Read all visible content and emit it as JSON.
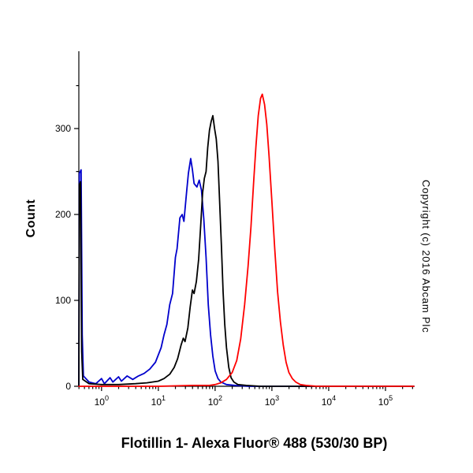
{
  "copyright": "Copyright (c) 2016 Abcam Plc",
  "chart_data": {
    "type": "line",
    "subtype": "flow-cytometry-histogram",
    "title": "Flotillin 1- Alexa Fluor® 488 (530/30 BP)",
    "xlabel": "Flotillin 1- Alexa Fluor® 488 (530/30 BP)",
    "ylabel": "Count",
    "x_scale": "log10",
    "x_log_range": [
      -0.4,
      5.5
    ],
    "x_major_exponents": [
      0,
      1,
      2,
      3,
      4,
      5
    ],
    "ylim": [
      0,
      390
    ],
    "y_major_ticks": [
      0,
      100,
      200,
      300
    ],
    "y_minor_ticks": [
      50,
      150,
      250,
      350
    ],
    "grid": false,
    "legend": "none",
    "series": [
      {
        "name": "blue-curve",
        "color": "#0000cc",
        "peak": {
          "x_log10": 1.57,
          "count": 265
        },
        "points": [
          [
            -0.4,
            0
          ],
          [
            -0.39,
            248
          ],
          [
            -0.36,
            252
          ],
          [
            -0.34,
            60
          ],
          [
            -0.32,
            12
          ],
          [
            -0.22,
            5
          ],
          [
            -0.1,
            3
          ],
          [
            0.0,
            9
          ],
          [
            0.05,
            3
          ],
          [
            0.15,
            10
          ],
          [
            0.2,
            5
          ],
          [
            0.3,
            11
          ],
          [
            0.35,
            6
          ],
          [
            0.45,
            12
          ],
          [
            0.55,
            8
          ],
          [
            0.65,
            12
          ],
          [
            0.75,
            15
          ],
          [
            0.85,
            20
          ],
          [
            0.95,
            28
          ],
          [
            1.05,
            45
          ],
          [
            1.1,
            60
          ],
          [
            1.15,
            72
          ],
          [
            1.2,
            95
          ],
          [
            1.25,
            108
          ],
          [
            1.3,
            150
          ],
          [
            1.33,
            160
          ],
          [
            1.38,
            196
          ],
          [
            1.42,
            200
          ],
          [
            1.45,
            192
          ],
          [
            1.5,
            228
          ],
          [
            1.53,
            248
          ],
          [
            1.57,
            265
          ],
          [
            1.6,
            252
          ],
          [
            1.63,
            236
          ],
          [
            1.68,
            232
          ],
          [
            1.72,
            240
          ],
          [
            1.76,
            228
          ],
          [
            1.8,
            195
          ],
          [
            1.84,
            150
          ],
          [
            1.88,
            95
          ],
          [
            1.92,
            60
          ],
          [
            1.96,
            35
          ],
          [
            2.0,
            18
          ],
          [
            2.05,
            9
          ],
          [
            2.1,
            5
          ],
          [
            2.2,
            2
          ],
          [
            2.35,
            1
          ],
          [
            2.6,
            0
          ],
          [
            5.5,
            0
          ]
        ]
      },
      {
        "name": "black-curve",
        "color": "#000000",
        "peak": {
          "x_log10": 1.96,
          "count": 315
        },
        "points": [
          [
            -0.4,
            0
          ],
          [
            -0.39,
            235
          ],
          [
            -0.37,
            238
          ],
          [
            -0.35,
            40
          ],
          [
            -0.33,
            8
          ],
          [
            -0.22,
            3
          ],
          [
            0.0,
            2
          ],
          [
            0.3,
            2
          ],
          [
            0.6,
            3
          ],
          [
            0.8,
            4
          ],
          [
            1.0,
            6
          ],
          [
            1.1,
            9
          ],
          [
            1.2,
            14
          ],
          [
            1.28,
            22
          ],
          [
            1.34,
            32
          ],
          [
            1.4,
            48
          ],
          [
            1.44,
            56
          ],
          [
            1.47,
            52
          ],
          [
            1.52,
            68
          ],
          [
            1.56,
            92
          ],
          [
            1.6,
            112
          ],
          [
            1.63,
            108
          ],
          [
            1.67,
            122
          ],
          [
            1.71,
            148
          ],
          [
            1.75,
            192
          ],
          [
            1.78,
            225
          ],
          [
            1.81,
            242
          ],
          [
            1.84,
            250
          ],
          [
            1.87,
            278
          ],
          [
            1.9,
            298
          ],
          [
            1.93,
            308
          ],
          [
            1.96,
            315
          ],
          [
            1.99,
            300
          ],
          [
            2.02,
            288
          ],
          [
            2.05,
            262
          ],
          [
            2.08,
            215
          ],
          [
            2.11,
            165
          ],
          [
            2.14,
            110
          ],
          [
            2.17,
            72
          ],
          [
            2.2,
            45
          ],
          [
            2.24,
            22
          ],
          [
            2.28,
            10
          ],
          [
            2.33,
            5
          ],
          [
            2.4,
            2
          ],
          [
            2.55,
            1
          ],
          [
            2.8,
            0
          ],
          [
            5.5,
            0
          ]
        ]
      },
      {
        "name": "red-curve",
        "color": "#ff0000",
        "peak": {
          "x_log10": 2.83,
          "count": 340
        },
        "points": [
          [
            -0.4,
            0
          ],
          [
            0.5,
            0
          ],
          [
            1.0,
            0
          ],
          [
            1.6,
            1
          ],
          [
            1.9,
            1
          ],
          [
            2.0,
            2
          ],
          [
            2.1,
            4
          ],
          [
            2.2,
            8
          ],
          [
            2.3,
            16
          ],
          [
            2.38,
            30
          ],
          [
            2.45,
            55
          ],
          [
            2.52,
            95
          ],
          [
            2.58,
            140
          ],
          [
            2.63,
            185
          ],
          [
            2.68,
            240
          ],
          [
            2.72,
            280
          ],
          [
            2.76,
            315
          ],
          [
            2.8,
            335
          ],
          [
            2.83,
            340
          ],
          [
            2.87,
            328
          ],
          [
            2.91,
            305
          ],
          [
            2.95,
            268
          ],
          [
            3.0,
            215
          ],
          [
            3.05,
            160
          ],
          [
            3.1,
            110
          ],
          [
            3.15,
            75
          ],
          [
            3.2,
            48
          ],
          [
            3.25,
            28
          ],
          [
            3.3,
            16
          ],
          [
            3.36,
            9
          ],
          [
            3.42,
            5
          ],
          [
            3.5,
            2
          ],
          [
            3.6,
            1
          ],
          [
            3.8,
            0
          ],
          [
            5.5,
            0
          ]
        ]
      }
    ]
  }
}
